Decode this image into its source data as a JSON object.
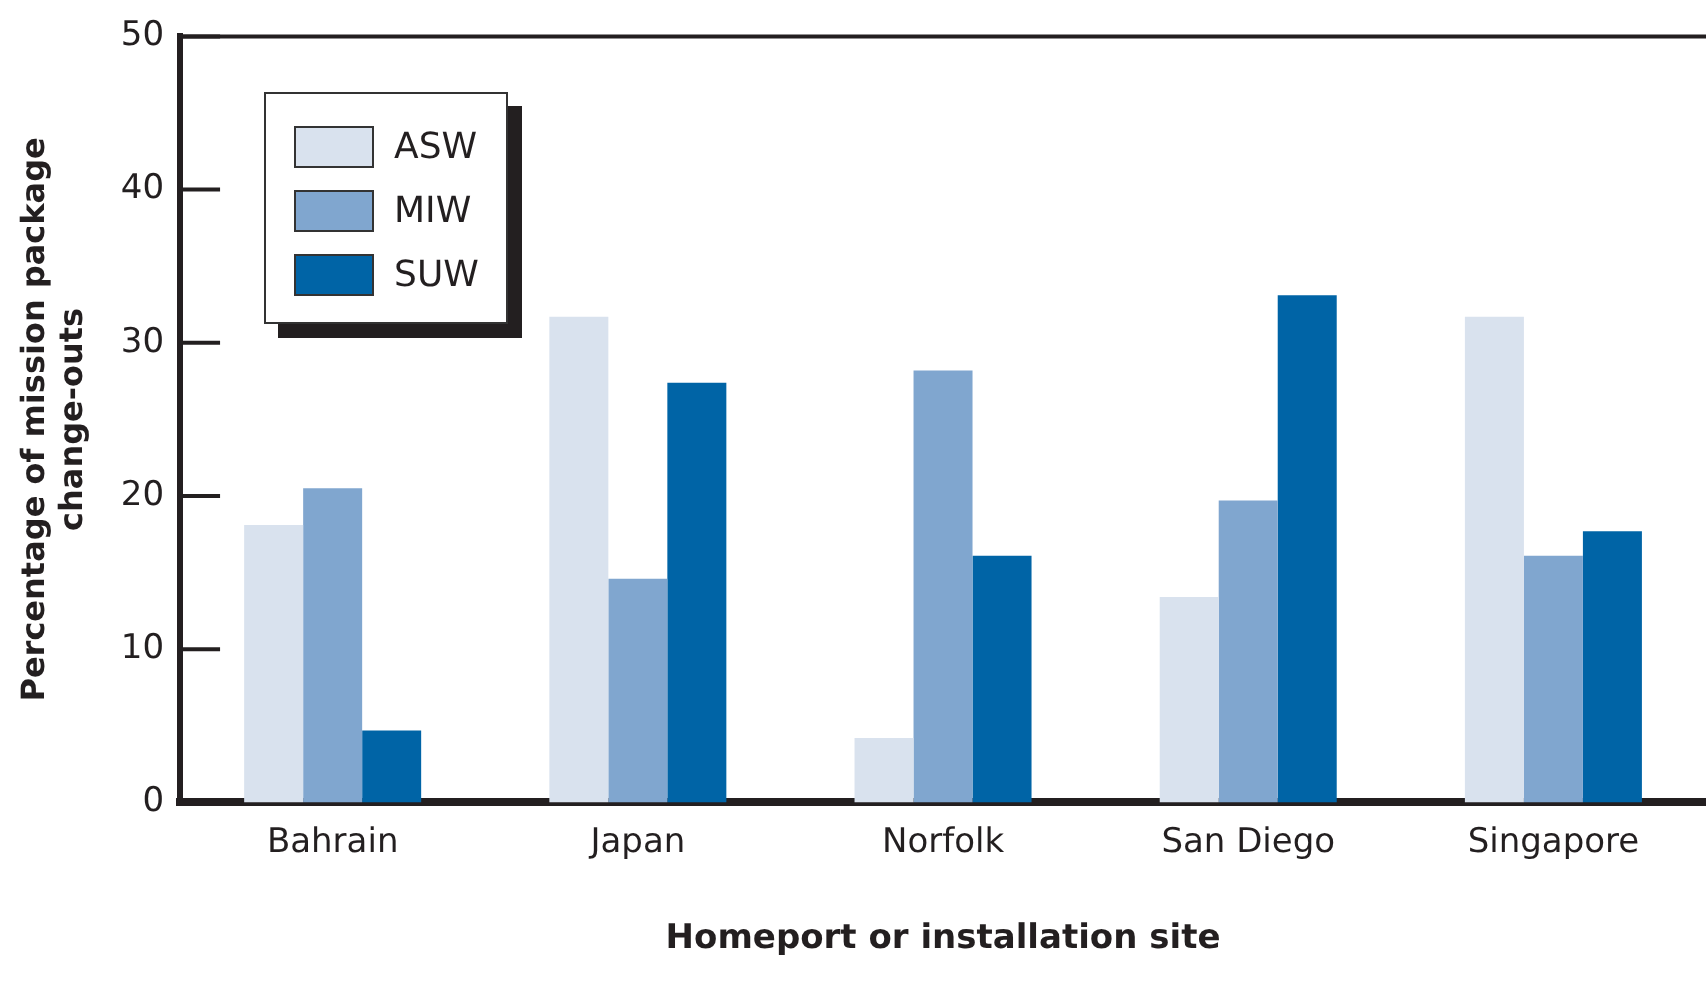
{
  "chart_data": {
    "type": "bar",
    "xlabel": "Homeport or installation site",
    "ylabel": "Percentage of mission package change-outs",
    "categories": [
      "Bahrain",
      "Japan",
      "Norfolk",
      "San Diego",
      "Singapore"
    ],
    "series": [
      {
        "name": "ASW",
        "color": "#d9e2ee",
        "values": [
          18.1,
          31.7,
          4.2,
          13.4,
          31.7
        ]
      },
      {
        "name": "MIW",
        "color": "#80a6cf",
        "values": [
          20.5,
          14.6,
          28.2,
          19.7,
          16.1
        ]
      },
      {
        "name": "SUW",
        "color": "#0064a6",
        "values": [
          4.7,
          27.4,
          16.1,
          33.1,
          17.7
        ]
      }
    ],
    "ylim": [
      0,
      50
    ],
    "yticks": [
      0,
      10,
      20,
      30,
      40,
      50
    ],
    "grid": false,
    "legend": "top left"
  }
}
